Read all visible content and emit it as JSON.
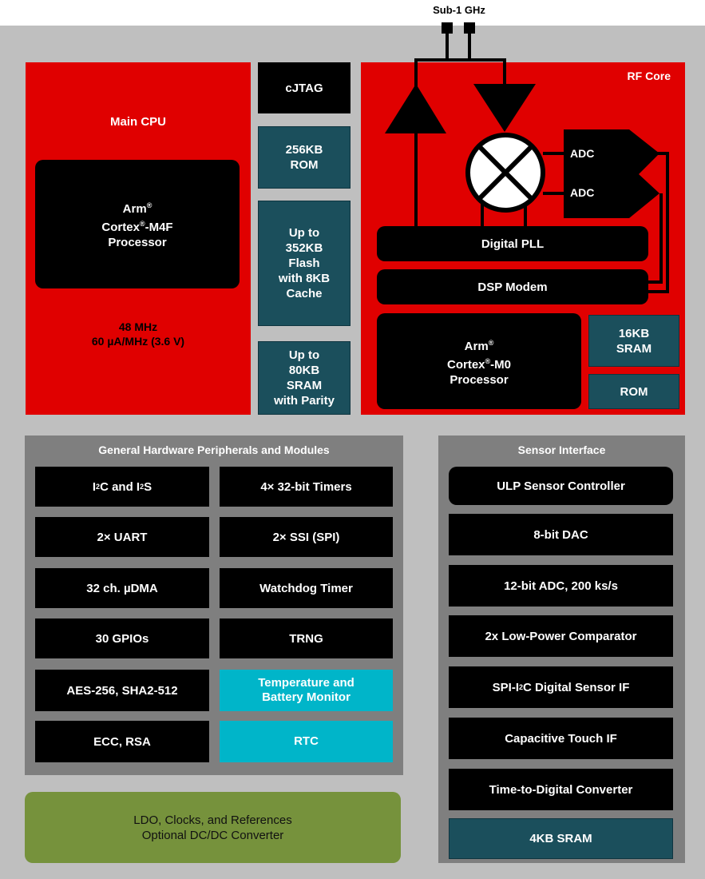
{
  "antenna_label": "Sub-1 GHz",
  "main_cpu": {
    "title": "Main CPU",
    "core_l1": "Arm",
    "core_l2": "Cortex",
    "core_l2b": "-M4F",
    "core_l3": "Processor",
    "reg": "®",
    "freq": "48 MHz",
    "power": "60 µA/MHz (3.6 V)"
  },
  "memory": {
    "cjtag": "cJTAG",
    "rom_l1": "256KB",
    "rom_l2": "ROM",
    "flash": [
      "Up to",
      "352KB",
      "Flash",
      "with 8KB",
      "Cache"
    ],
    "sram": [
      "Up to",
      "80KB",
      "SRAM",
      "with Parity"
    ]
  },
  "rf_core": {
    "title": "RF Core",
    "adc1": "ADC",
    "adc2": "ADC",
    "pll": "Digital PLL",
    "dsp": "DSP Modem",
    "core_l1": "Arm",
    "core_l2": "Cortex",
    "core_l2b": "-M0",
    "core_l3": "Processor",
    "reg": "®",
    "sram_l1": "16KB",
    "sram_l2": "SRAM",
    "rom": "ROM"
  },
  "peripherals": {
    "title": "General Hardware Peripherals and Modules",
    "i2c": {
      "a": "I",
      "b": "2",
      "c": "C and I",
      "d": "2",
      "e": "S"
    },
    "items": [
      "4× 32-bit Timers",
      "2× UART",
      "2× SSI (SPI)",
      "32 ch. µDMA",
      "Watchdog Timer",
      "30 GPIOs",
      "TRNG",
      "AES-256,  SHA2-512",
      "Temperature and Battery Monitor",
      "ECC, RSA",
      "RTC"
    ]
  },
  "sensor": {
    "title": "Sensor Interface",
    "items": [
      "ULP Sensor Controller",
      "8-bit DAC",
      "12-bit ADC, 200 ks/s",
      "2x Low-Power Comparator"
    ],
    "spi_a": "SPI-I",
    "spi_b": "2",
    "spi_c": "C Digital Sensor IF",
    "items2": [
      "Capacitive Touch IF",
      "Time-to-Digital Converter",
      "4KB SRAM"
    ]
  },
  "power": {
    "l1": "LDO, Clocks, and References",
    "l2": "Optional DC/DC Converter"
  },
  "colors": {
    "red": "#e00000",
    "teal": "#1b4f5c",
    "cyan": "#00b5c9",
    "green": "#76923c",
    "panel": "#7f7f7f"
  }
}
